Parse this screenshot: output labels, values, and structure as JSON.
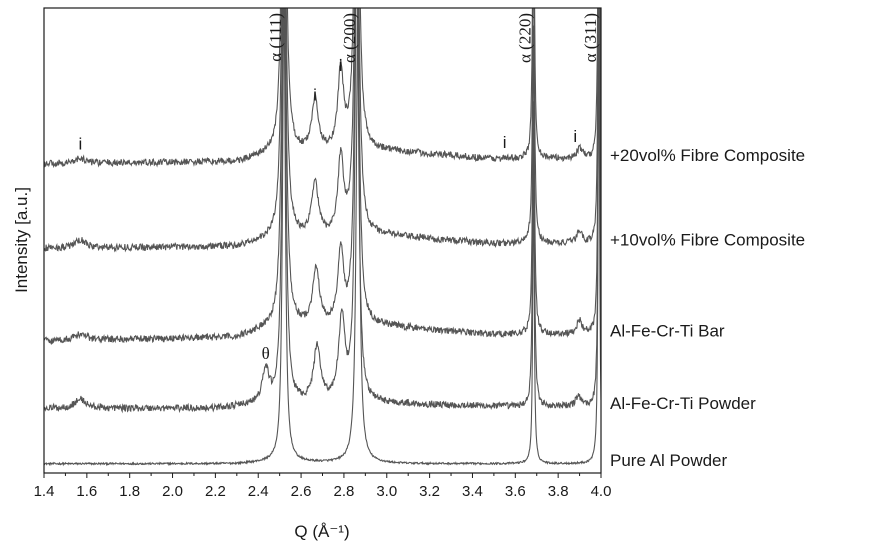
{
  "chart_data": {
    "type": "line",
    "xlabel": "Q (Å⁻¹)",
    "ylabel": "Intensity [a.u.]",
    "xlim": [
      1.4,
      4.0
    ],
    "x_ticks": [
      "1.4",
      "1.6",
      "1.8",
      "2.0",
      "2.2",
      "2.4",
      "2.6",
      "2.8",
      "3.0",
      "3.2",
      "3.4",
      "3.6",
      "3.8",
      "4.0"
    ],
    "grid": false,
    "line_color": "#555555",
    "series": [
      {
        "name": "Pure Al Powder",
        "offset": 0,
        "noise": 0.006,
        "baseline": [
          [
            1.4,
            0.02
          ],
          [
            2.3,
            0.02
          ],
          [
            2.45,
            0.03
          ],
          [
            3.1,
            0.02
          ],
          [
            4.0,
            0.02
          ]
        ],
        "peaks": [
          {
            "center": 2.52,
            "width": 0.008,
            "height": 3.0
          },
          {
            "center": 2.865,
            "width": 0.009,
            "height": 3.0
          },
          {
            "center": 3.685,
            "width": 0.004,
            "height": 2.0
          },
          {
            "center": 3.99,
            "width": 0.004,
            "height": 3.0
          }
        ]
      },
      {
        "name": "Al-Fe-Cr-Ti Powder",
        "offset": 0.36,
        "noise": 0.022,
        "baseline": [
          [
            1.4,
            0.02
          ],
          [
            2.2,
            0.02
          ],
          [
            2.4,
            0.04
          ],
          [
            3.0,
            0.05
          ],
          [
            3.6,
            0.03
          ],
          [
            4.0,
            0.03
          ]
        ],
        "peaks": [
          {
            "center": 1.57,
            "width": 0.03,
            "height": 0.06
          },
          {
            "center": 2.435,
            "width": 0.018,
            "height": 0.22
          },
          {
            "center": 2.52,
            "width": 0.01,
            "height": 3.0
          },
          {
            "center": 2.675,
            "width": 0.02,
            "height": 0.36
          },
          {
            "center": 2.79,
            "width": 0.018,
            "height": 0.54
          },
          {
            "center": 2.86,
            "width": 0.01,
            "height": 3.0
          },
          {
            "center": 3.685,
            "width": 0.005,
            "height": 2.0
          },
          {
            "center": 3.895,
            "width": 0.015,
            "height": 0.07
          },
          {
            "center": 3.99,
            "width": 0.004,
            "height": 3.0
          }
        ]
      },
      {
        "name": "Al-Fe-Cr-Ti Bar",
        "offset": 0.82,
        "noise": 0.022,
        "baseline": [
          [
            1.4,
            0.0
          ],
          [
            2.3,
            0.02
          ],
          [
            2.45,
            0.08
          ],
          [
            3.0,
            0.09
          ],
          [
            3.5,
            0.04
          ],
          [
            4.0,
            0.04
          ]
        ],
        "peaks": [
          {
            "center": 1.57,
            "width": 0.03,
            "height": 0.04
          },
          {
            "center": 2.52,
            "width": 0.011,
            "height": 3.0
          },
          {
            "center": 2.67,
            "width": 0.018,
            "height": 0.38
          },
          {
            "center": 2.785,
            "width": 0.016,
            "height": 0.48
          },
          {
            "center": 2.86,
            "width": 0.011,
            "height": 3.0
          },
          {
            "center": 3.685,
            "width": 0.005,
            "height": 2.0
          },
          {
            "center": 3.9,
            "width": 0.015,
            "height": 0.09
          },
          {
            "center": 3.99,
            "width": 0.004,
            "height": 3.0
          }
        ]
      },
      {
        "name": "+10vol% Fibre Composite",
        "offset": 1.42,
        "noise": 0.022,
        "baseline": [
          [
            1.4,
            0.0
          ],
          [
            2.3,
            0.01
          ],
          [
            2.45,
            0.05
          ],
          [
            3.0,
            0.08
          ],
          [
            3.5,
            0.03
          ],
          [
            4.0,
            0.03
          ]
        ],
        "peaks": [
          {
            "center": 1.57,
            "width": 0.03,
            "height": 0.05
          },
          {
            "center": 2.52,
            "width": 0.011,
            "height": 3.0
          },
          {
            "center": 2.665,
            "width": 0.018,
            "height": 0.36
          },
          {
            "center": 2.785,
            "width": 0.016,
            "height": 0.5
          },
          {
            "center": 2.86,
            "width": 0.011,
            "height": 3.0
          },
          {
            "center": 3.685,
            "width": 0.005,
            "height": 2.0
          },
          {
            "center": 3.9,
            "width": 0.015,
            "height": 0.08
          },
          {
            "center": 3.99,
            "width": 0.004,
            "height": 3.0
          }
        ]
      },
      {
        "name": "+20vol% Fibre Composite",
        "offset": 1.97,
        "noise": 0.022,
        "baseline": [
          [
            1.4,
            0.0
          ],
          [
            2.3,
            0.01
          ],
          [
            2.45,
            0.05
          ],
          [
            3.0,
            0.08
          ],
          [
            3.5,
            0.03
          ],
          [
            4.0,
            0.03
          ]
        ],
        "peaks": [
          {
            "center": 1.57,
            "width": 0.03,
            "height": 0.03
          },
          {
            "center": 2.52,
            "width": 0.011,
            "height": 3.0
          },
          {
            "center": 2.665,
            "width": 0.018,
            "height": 0.34
          },
          {
            "center": 2.785,
            "width": 0.016,
            "height": 0.52
          },
          {
            "center": 2.86,
            "width": 0.011,
            "height": 3.0
          },
          {
            "center": 3.685,
            "width": 0.005,
            "height": 2.0
          },
          {
            "center": 3.9,
            "width": 0.015,
            "height": 0.07
          },
          {
            "center": 3.99,
            "width": 0.004,
            "height": 3.0
          }
        ]
      }
    ],
    "peak_labels": [
      {
        "text": "α (111)",
        "x": 2.52
      },
      {
        "text": "α (200)",
        "x": 2.865
      },
      {
        "text": "α (220)",
        "x": 3.685
      },
      {
        "text": "α (311)",
        "x": 3.99
      }
    ],
    "annotations": [
      {
        "text": "i",
        "x": 1.57,
        "y": 2.06
      },
      {
        "text": "i",
        "x": 2.665,
        "y": 2.38
      },
      {
        "text": "i",
        "x": 2.785,
        "y": 2.57
      },
      {
        "text": "i",
        "x": 3.55,
        "y": 2.07
      },
      {
        "text": "i",
        "x": 3.88,
        "y": 2.11
      },
      {
        "text": "θ",
        "x": 2.435,
        "y": 0.7
      }
    ]
  }
}
